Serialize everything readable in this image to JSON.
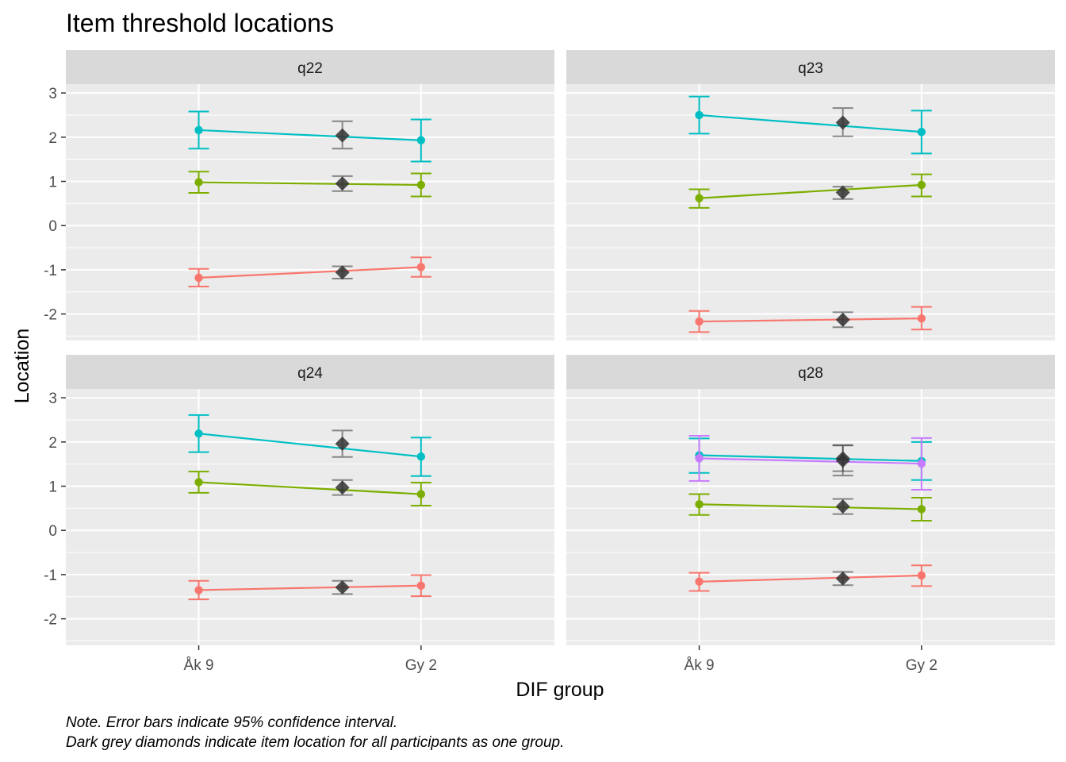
{
  "chart_data": {
    "type": "line",
    "title": "Item threshold locations",
    "xlabel": "DIF group",
    "ylabel": "Location",
    "categories": [
      "Åk 9",
      "",
      "Gy 2"
    ],
    "x_tick_labels": [
      "Åk 9",
      "Gy 2"
    ],
    "y_ticks": [
      3,
      2,
      1,
      0,
      -1,
      -2
    ],
    "y_tick_labels": [
      "3",
      "2",
      "1",
      "0",
      "-1",
      "-2"
    ],
    "ylim": [
      -2.6,
      3.2
    ],
    "grid": true,
    "legend": "none",
    "series_colors": [
      "#F8766D",
      "#7CAE00",
      "#00BFC4",
      "#C77CFF"
    ],
    "overall_color": "#333333",
    "caption_lines": [
      "Note. Error bars indicate 95% confidence interval.",
      "Dark grey diamonds indicate item location for all participants as one group."
    ],
    "panels": [
      {
        "label": "q22",
        "series": [
          {
            "points": [
              {
                "x": "Åk 9",
                "y": -1.18,
                "lo": -1.38,
                "hi": -0.98
              },
              {
                "x": "Gy 2",
                "y": -0.94,
                "lo": -1.16,
                "hi": -0.72
              }
            ],
            "overall": {
              "y": -1.06,
              "lo": -1.2,
              "hi": -0.92
            }
          },
          {
            "points": [
              {
                "x": "Åk 9",
                "y": 0.98,
                "lo": 0.74,
                "hi": 1.22
              },
              {
                "x": "Gy 2",
                "y": 0.92,
                "lo": 0.66,
                "hi": 1.18
              }
            ],
            "overall": {
              "y": 0.95,
              "lo": 0.78,
              "hi": 1.12
            }
          },
          {
            "points": [
              {
                "x": "Åk 9",
                "y": 2.16,
                "lo": 1.74,
                "hi": 2.58
              },
              {
                "x": "Gy 2",
                "y": 1.93,
                "lo": 1.45,
                "hi": 2.4
              }
            ],
            "overall": {
              "y": 2.04,
              "lo": 1.74,
              "hi": 2.36
            }
          }
        ]
      },
      {
        "label": "q23",
        "series": [
          {
            "points": [
              {
                "x": "Åk 9",
                "y": -2.17,
                "lo": -2.41,
                "hi": -1.93
              },
              {
                "x": "Gy 2",
                "y": -2.1,
                "lo": -2.35,
                "hi": -1.84
              }
            ],
            "overall": {
              "y": -2.13,
              "lo": -2.3,
              "hi": -1.96
            }
          },
          {
            "points": [
              {
                "x": "Åk 9",
                "y": 0.62,
                "lo": 0.4,
                "hi": 0.82
              },
              {
                "x": "Gy 2",
                "y": 0.92,
                "lo": 0.66,
                "hi": 1.16
              }
            ],
            "overall": {
              "y": 0.75,
              "lo": 0.6,
              "hi": 0.88
            }
          },
          {
            "points": [
              {
                "x": "Åk 9",
                "y": 2.5,
                "lo": 2.08,
                "hi": 2.92
              },
              {
                "x": "Gy 2",
                "y": 2.12,
                "lo": 1.63,
                "hi": 2.6
              }
            ],
            "overall": {
              "y": 2.33,
              "lo": 2.02,
              "hi": 2.66
            }
          }
        ]
      },
      {
        "label": "q24",
        "series": [
          {
            "points": [
              {
                "x": "Åk 9",
                "y": -1.35,
                "lo": -1.56,
                "hi": -1.14
              },
              {
                "x": "Gy 2",
                "y": -1.25,
                "lo": -1.49,
                "hi": -1.01
              }
            ],
            "overall": {
              "y": -1.29,
              "lo": -1.44,
              "hi": -1.14
            }
          },
          {
            "points": [
              {
                "x": "Åk 9",
                "y": 1.09,
                "lo": 0.85,
                "hi": 1.33
              },
              {
                "x": "Gy 2",
                "y": 0.82,
                "lo": 0.56,
                "hi": 1.08
              }
            ],
            "overall": {
              "y": 0.97,
              "lo": 0.8,
              "hi": 1.14
            }
          },
          {
            "points": [
              {
                "x": "Åk 9",
                "y": 2.19,
                "lo": 1.77,
                "hi": 2.61
              },
              {
                "x": "Gy 2",
                "y": 1.67,
                "lo": 1.23,
                "hi": 2.1
              }
            ],
            "overall": {
              "y": 1.96,
              "lo": 1.66,
              "hi": 2.26
            }
          }
        ]
      },
      {
        "label": "q28",
        "series": [
          {
            "points": [
              {
                "x": "Åk 9",
                "y": -1.16,
                "lo": -1.37,
                "hi": -0.96
              },
              {
                "x": "Gy 2",
                "y": -1.02,
                "lo": -1.26,
                "hi": -0.79
              }
            ],
            "overall": {
              "y": -1.09,
              "lo": -1.24,
              "hi": -0.94
            }
          },
          {
            "points": [
              {
                "x": "Åk 9",
                "y": 0.59,
                "lo": 0.35,
                "hi": 0.82
              },
              {
                "x": "Gy 2",
                "y": 0.48,
                "lo": 0.22,
                "hi": 0.74
              }
            ],
            "overall": {
              "y": 0.54,
              "lo": 0.37,
              "hi": 0.71
            }
          },
          {
            "points": [
              {
                "x": "Åk 9",
                "y": 1.7,
                "lo": 1.3,
                "hi": 2.08
              },
              {
                "x": "Gy 2",
                "y": 1.57,
                "lo": 1.14,
                "hi": 2.0
              }
            ],
            "overall": {
              "y": 1.63,
              "lo": 1.34,
              "hi": 1.93
            }
          },
          {
            "points": [
              {
                "x": "Åk 9",
                "y": 1.63,
                "lo": 1.12,
                "hi": 2.14
              },
              {
                "x": "Gy 2",
                "y": 1.51,
                "lo": 0.92,
                "hi": 2.09
              }
            ],
            "overall": {
              "y": 1.58,
              "lo": 1.24,
              "hi": 1.92
            }
          }
        ]
      }
    ]
  }
}
